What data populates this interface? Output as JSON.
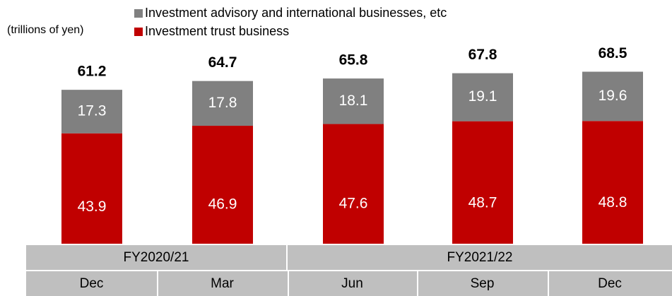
{
  "chart_data": {
    "type": "stacked_bar",
    "unit_label": "(trillions of yen)",
    "categories": [
      "Dec",
      "Mar",
      "Jun",
      "Sep",
      "Dec"
    ],
    "groups": [
      "FY2020/21",
      "FY2021/22"
    ],
    "series": [
      {
        "name": "Investment advisory and international businesses, etc",
        "color": "#808080",
        "values": [
          17.3,
          17.8,
          18.1,
          19.1,
          19.6
        ]
      },
      {
        "name": "Investment trust business",
        "color": "#c00000",
        "values": [
          43.9,
          46.9,
          47.6,
          48.7,
          48.8
        ]
      }
    ],
    "totals": [
      61.2,
      64.7,
      65.8,
      67.8,
      68.5
    ]
  }
}
